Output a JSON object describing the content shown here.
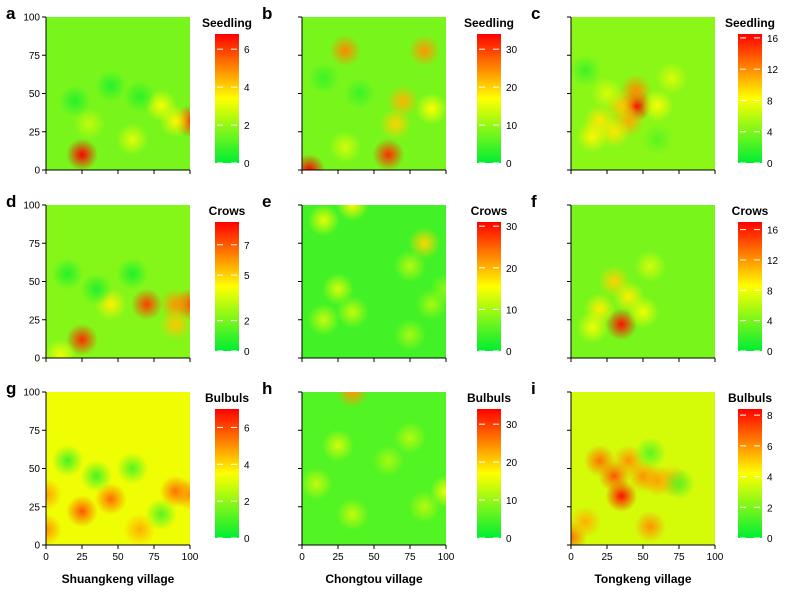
{
  "chart_data": [
    {
      "panel": "a",
      "type": "heatmap",
      "variable": "Seedling",
      "village": "Shuangkeng village",
      "x_ticks": [
        0,
        25,
        50,
        75,
        100
      ],
      "y_ticks": [
        0,
        25,
        50,
        75,
        100
      ],
      "xlim": [
        0,
        100
      ],
      "ylim": [
        0,
        100
      ],
      "colorbar_ticks": [
        0,
        2,
        4,
        6
      ],
      "colorbar_range": [
        0,
        6.8
      ],
      "base_value": 1.6,
      "hotspots": [
        {
          "x": 25,
          "y": 10,
          "value": 6.8
        },
        {
          "x": 100,
          "y": 32,
          "value": 6.2
        },
        {
          "x": 90,
          "y": 32,
          "value": 3.5
        },
        {
          "x": 80,
          "y": 42,
          "value": 3.3
        },
        {
          "x": 60,
          "y": 20,
          "value": 3.0
        },
        {
          "x": 30,
          "y": 30,
          "value": 2.6
        },
        {
          "x": 45,
          "y": 55,
          "value": 0.5
        },
        {
          "x": 20,
          "y": 45,
          "value": 0.5
        },
        {
          "x": 65,
          "y": 48,
          "value": 0.6
        }
      ]
    },
    {
      "panel": "b",
      "type": "heatmap",
      "variable": "Seedling",
      "village": "Chongtou village",
      "x_ticks": [
        0,
        25,
        50,
        75,
        100
      ],
      "y_ticks": [
        0,
        25,
        50,
        75,
        100
      ],
      "xlim": [
        0,
        100
      ],
      "ylim": [
        0,
        100
      ],
      "colorbar_ticks": [
        0,
        10,
        20,
        30
      ],
      "colorbar_range": [
        0,
        34
      ],
      "base_value": 8,
      "hotspots": [
        {
          "x": 5,
          "y": 0,
          "value": 34
        },
        {
          "x": 60,
          "y": 10,
          "value": 31
        },
        {
          "x": 30,
          "y": 78,
          "value": 25
        },
        {
          "x": 85,
          "y": 78,
          "value": 24
        },
        {
          "x": 70,
          "y": 45,
          "value": 22
        },
        {
          "x": 65,
          "y": 30,
          "value": 20
        },
        {
          "x": 90,
          "y": 40,
          "value": 17
        },
        {
          "x": 30,
          "y": 15,
          "value": 14
        },
        {
          "x": 40,
          "y": 50,
          "value": 4
        },
        {
          "x": 15,
          "y": 60,
          "value": 4
        }
      ]
    },
    {
      "panel": "c",
      "type": "heatmap",
      "variable": "Seedling",
      "village": "Tongkeng village",
      "x_ticks": [
        0,
        25,
        50,
        75,
        100
      ],
      "y_ticks": [
        0,
        25,
        50,
        75,
        100
      ],
      "xlim": [
        0,
        100
      ],
      "ylim": [
        0,
        100
      ],
      "colorbar_ticks": [
        0,
        4,
        8,
        12,
        16
      ],
      "colorbar_range": [
        0,
        16.5
      ],
      "base_value": 4.5,
      "hotspots": [
        {
          "x": 45,
          "y": 42,
          "value": 16.5
        },
        {
          "x": 45,
          "y": 52,
          "value": 12
        },
        {
          "x": 40,
          "y": 32,
          "value": 11
        },
        {
          "x": 35,
          "y": 42,
          "value": 10
        },
        {
          "x": 20,
          "y": 32,
          "value": 9
        },
        {
          "x": 30,
          "y": 25,
          "value": 9
        },
        {
          "x": 15,
          "y": 22,
          "value": 8.5
        },
        {
          "x": 25,
          "y": 50,
          "value": 7
        },
        {
          "x": 70,
          "y": 60,
          "value": 7
        },
        {
          "x": 60,
          "y": 42,
          "value": 8
        },
        {
          "x": 10,
          "y": 65,
          "value": 2
        },
        {
          "x": 60,
          "y": 20,
          "value": 3
        }
      ]
    },
    {
      "panel": "d",
      "type": "heatmap",
      "variable": "Crows",
      "village": "Shuangkeng village",
      "x_ticks": [
        0,
        25,
        50,
        75,
        100
      ],
      "y_ticks": [
        0,
        25,
        50,
        75,
        100
      ],
      "xlim": [
        0,
        100
      ],
      "ylim": [
        0,
        100
      ],
      "colorbar_ticks": [
        0,
        2,
        5,
        7
      ],
      "colorbar_range": [
        0,
        8.5
      ],
      "base_value": 2.2,
      "hotspots": [
        {
          "x": 25,
          "y": 12,
          "value": 7.8
        },
        {
          "x": 70,
          "y": 35,
          "value": 7.5
        },
        {
          "x": 100,
          "y": 35,
          "value": 7.2
        },
        {
          "x": 90,
          "y": 35,
          "value": 6.0
        },
        {
          "x": 90,
          "y": 22,
          "value": 5.2
        },
        {
          "x": 45,
          "y": 35,
          "value": 4.5
        },
        {
          "x": 10,
          "y": 2,
          "value": 4.0
        },
        {
          "x": 15,
          "y": 55,
          "value": 0.6
        },
        {
          "x": 35,
          "y": 45,
          "value": 0.6
        },
        {
          "x": 60,
          "y": 55,
          "value": 0.5
        }
      ]
    },
    {
      "panel": "e",
      "type": "heatmap",
      "variable": "Crows",
      "village": "Chongtou village",
      "x_ticks": [
        0,
        25,
        50,
        75,
        100
      ],
      "y_ticks": [
        0,
        25,
        50,
        75,
        100
      ],
      "xlim": [
        0,
        100
      ],
      "ylim": [
        0,
        100
      ],
      "colorbar_ticks": [
        0,
        10,
        20,
        30
      ],
      "colorbar_range": [
        0,
        31
      ],
      "base_value": 4,
      "hotspots": [
        {
          "x": 85,
          "y": 75,
          "value": 18
        },
        {
          "x": 35,
          "y": 100,
          "value": 16
        },
        {
          "x": 15,
          "y": 90,
          "value": 14
        },
        {
          "x": 25,
          "y": 45,
          "value": 13
        },
        {
          "x": 15,
          "y": 25,
          "value": 12
        },
        {
          "x": 35,
          "y": 30,
          "value": 12
        },
        {
          "x": 75,
          "y": 60,
          "value": 11
        },
        {
          "x": 90,
          "y": 35,
          "value": 10
        },
        {
          "x": 75,
          "y": 15,
          "value": 10
        },
        {
          "x": 100,
          "y": 45,
          "value": 9
        }
      ]
    },
    {
      "panel": "f",
      "type": "heatmap",
      "variable": "Crows",
      "village": "Tongkeng village",
      "x_ticks": [
        0,
        25,
        50,
        75,
        100
      ],
      "y_ticks": [
        0,
        25,
        50,
        75,
        100
      ],
      "xlim": [
        0,
        100
      ],
      "ylim": [
        0,
        100
      ],
      "colorbar_ticks": [
        0,
        4,
        8,
        12,
        16
      ],
      "colorbar_range": [
        0,
        17
      ],
      "base_value": 4,
      "hotspots": [
        {
          "x": 35,
          "y": 22,
          "value": 16.5
        },
        {
          "x": 30,
          "y": 50,
          "value": 10
        },
        {
          "x": 20,
          "y": 32,
          "value": 9
        },
        {
          "x": 40,
          "y": 40,
          "value": 9
        },
        {
          "x": 50,
          "y": 30,
          "value": 8
        },
        {
          "x": 55,
          "y": 60,
          "value": 7
        },
        {
          "x": 15,
          "y": 20,
          "value": 8
        }
      ]
    },
    {
      "panel": "g",
      "type": "heatmap",
      "variable": "Bulbuls",
      "village": "Shuangkeng village",
      "x_ticks": [
        0,
        25,
        50,
        75,
        100
      ],
      "y_ticks": [
        0,
        25,
        50,
        75,
        100
      ],
      "xlim": [
        0,
        100
      ],
      "ylim": [
        0,
        100
      ],
      "colorbar_ticks": [
        0,
        2,
        4,
        6
      ],
      "colorbar_range": [
        0,
        7
      ],
      "base_value": 3.3,
      "hotspots": [
        {
          "x": 25,
          "y": 22,
          "value": 5.8
        },
        {
          "x": 45,
          "y": 30,
          "value": 5.5
        },
        {
          "x": 90,
          "y": 35,
          "value": 5.5
        },
        {
          "x": 100,
          "y": 33,
          "value": 5.0
        },
        {
          "x": 0,
          "y": 33,
          "value": 4.8
        },
        {
          "x": 0,
          "y": 10,
          "value": 5.0
        },
        {
          "x": 65,
          "y": 10,
          "value": 4.6
        },
        {
          "x": 15,
          "y": 55,
          "value": 1.0
        },
        {
          "x": 35,
          "y": 45,
          "value": 1.0
        },
        {
          "x": 60,
          "y": 50,
          "value": 1.2
        },
        {
          "x": 80,
          "y": 20,
          "value": 1.2
        }
      ]
    },
    {
      "panel": "h",
      "type": "heatmap",
      "variable": "Bulbuls",
      "village": "Chongtou village",
      "x_ticks": [
        0,
        25,
        50,
        75,
        100
      ],
      "y_ticks": [
        0,
        25,
        50,
        75,
        100
      ],
      "xlim": [
        0,
        100
      ],
      "ylim": [
        0,
        100
      ],
      "colorbar_ticks": [
        0,
        10,
        20,
        30
      ],
      "colorbar_range": [
        0,
        34
      ],
      "base_value": 5.5,
      "hotspots": [
        {
          "x": 35,
          "y": 100,
          "value": 24
        },
        {
          "x": 100,
          "y": 35,
          "value": 16
        },
        {
          "x": 25,
          "y": 65,
          "value": 14
        },
        {
          "x": 10,
          "y": 40,
          "value": 13
        },
        {
          "x": 75,
          "y": 70,
          "value": 12
        },
        {
          "x": 35,
          "y": 20,
          "value": 13
        },
        {
          "x": 60,
          "y": 55,
          "value": 11
        },
        {
          "x": 85,
          "y": 25,
          "value": 12
        }
      ]
    },
    {
      "panel": "i",
      "type": "heatmap",
      "variable": "Bulbuls",
      "village": "Tongkeng village",
      "x_ticks": [
        0,
        25,
        50,
        75,
        100
      ],
      "y_ticks": [
        0,
        25,
        50,
        75,
        100
      ],
      "xlim": [
        0,
        100
      ],
      "ylim": [
        0,
        100
      ],
      "colorbar_ticks": [
        0,
        2,
        4,
        6,
        8
      ],
      "colorbar_range": [
        0,
        8.4
      ],
      "base_value": 3.5,
      "hotspots": [
        {
          "x": 35,
          "y": 32,
          "value": 8.2
        },
        {
          "x": 30,
          "y": 45,
          "value": 7
        },
        {
          "x": 20,
          "y": 55,
          "value": 6.5
        },
        {
          "x": 40,
          "y": 55,
          "value": 6
        },
        {
          "x": 50,
          "y": 45,
          "value": 6
        },
        {
          "x": 60,
          "y": 42,
          "value": 5.8
        },
        {
          "x": 0,
          "y": 5,
          "value": 6.5
        },
        {
          "x": 55,
          "y": 12,
          "value": 6
        },
        {
          "x": 10,
          "y": 15,
          "value": 5.5
        },
        {
          "x": 70,
          "y": 42,
          "value": 5.5
        },
        {
          "x": 55,
          "y": 60,
          "value": 1.5
        },
        {
          "x": 75,
          "y": 40,
          "value": 1.5
        }
      ]
    }
  ],
  "colors": {
    "low": "#00ee33",
    "mid": "#ffff00",
    "high": "#ff0000"
  }
}
